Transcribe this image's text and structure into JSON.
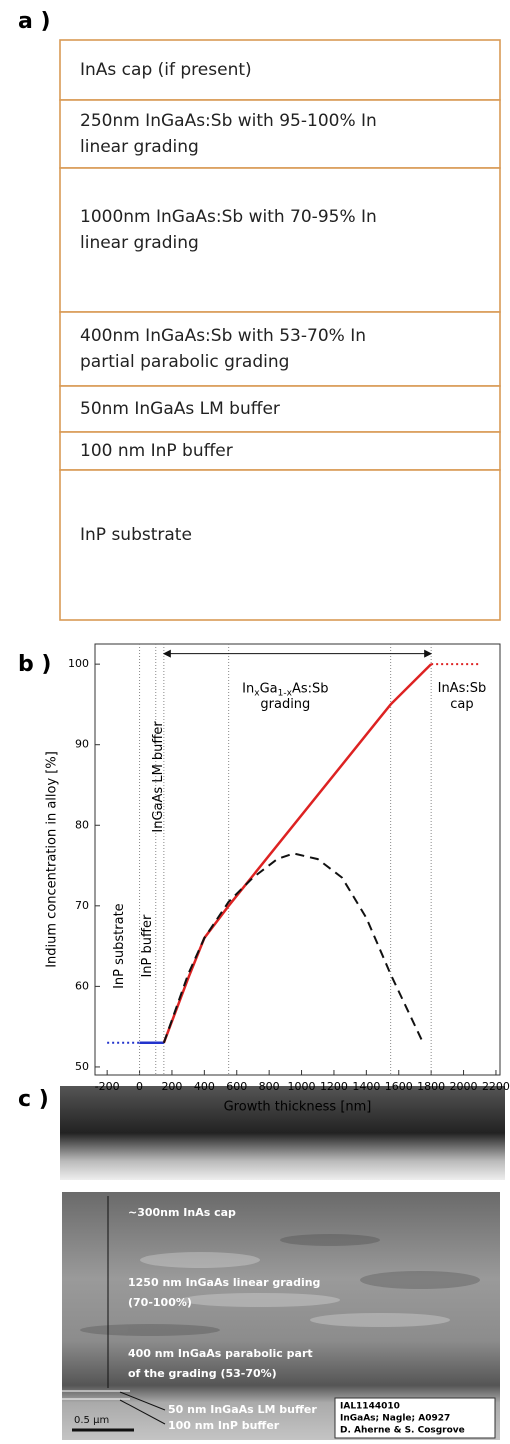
{
  "panel_a": {
    "label": "a )",
    "layers": [
      {
        "lines": [
          "InAs cap (if present)"
        ]
      },
      {
        "lines": [
          "250nm InGaAs:Sb with 95-100% In",
          "linear grading"
        ]
      },
      {
        "lines": [
          "1000nm InGaAs:Sb with 70-95% In",
          "linear grading"
        ]
      },
      {
        "lines": [
          "400nm InGaAs:Sb with 53-70% In",
          "partial parabolic grading"
        ]
      },
      {
        "lines": [
          "50nm InGaAs LM buffer"
        ]
      },
      {
        "lines": [
          "100 nm InP buffer"
        ]
      },
      {
        "lines": [
          "InP substrate"
        ]
      }
    ]
  },
  "chart_data": {
    "type": "line",
    "label": "b )",
    "xlabel": "Growth thickness [nm]",
    "ylabel": "Indium concentration in alloy [%]",
    "xlim": [
      -275,
      2225
    ],
    "ylim": [
      49,
      102.5
    ],
    "xticks": [
      -200,
      0,
      200,
      400,
      600,
      800,
      1000,
      1200,
      1400,
      1600,
      1800,
      2000,
      2200
    ],
    "yticks": [
      50,
      60,
      70,
      80,
      90,
      100
    ],
    "vlines": [
      0,
      100,
      150,
      550,
      1550,
      1800
    ],
    "series": [
      {
        "color": "#2233cc",
        "dash": "dotted",
        "x": [
          -200,
          0
        ],
        "values": [
          53,
          53
        ]
      },
      {
        "color": "#2233cc",
        "dash": "solid",
        "x": [
          0,
          150
        ],
        "values": [
          53,
          53
        ]
      },
      {
        "color": "#dd2222",
        "dash": "solid",
        "x": [
          150,
          300,
          400,
          550,
          1550,
          1800
        ],
        "values": [
          53,
          61,
          66,
          70,
          95,
          100
        ]
      },
      {
        "color": "#111111",
        "dash": "dashed",
        "x": [
          150,
          300,
          400,
          550,
          700,
          850,
          950,
          1100,
          1250,
          1400,
          1550,
          1750
        ],
        "values": [
          53,
          61.5,
          66,
          70.5,
          73.5,
          75.8,
          76.5,
          75.8,
          73.5,
          68.5,
          61.5,
          53
        ]
      },
      {
        "color": "#dd2222",
        "dash": "dotted",
        "x": [
          1800,
          2100
        ],
        "values": [
          100,
          100
        ]
      }
    ],
    "annotations": [
      "InP substrate",
      "InP buffer",
      "InGaAs LM buffer",
      "InAs:Sb",
      "cap",
      "grading"
    ],
    "grading_title": [
      {
        "text": "In"
      },
      {
        "text": "x",
        "sub": true
      },
      {
        "text": "Ga"
      },
      {
        "text": "1-x",
        "sub": true
      },
      {
        "text": "As:Sb"
      }
    ]
  },
  "panel_c": {
    "label": "c )",
    "annotations": [
      "~300nm InAs cap",
      "1250 nm InGaAs linear grading",
      "(70-100%)",
      "400 nm InGaAs parabolic part",
      "of the grading (53-70%)",
      "50 nm InGaAs LM buffer",
      "100 nm InP buffer"
    ],
    "scale_bar": "0.5 µm",
    "credit": [
      "IAL1144010",
      "InGaAs; Nagle; A0927",
      "D. Aherne & S. Cosgrove"
    ]
  }
}
